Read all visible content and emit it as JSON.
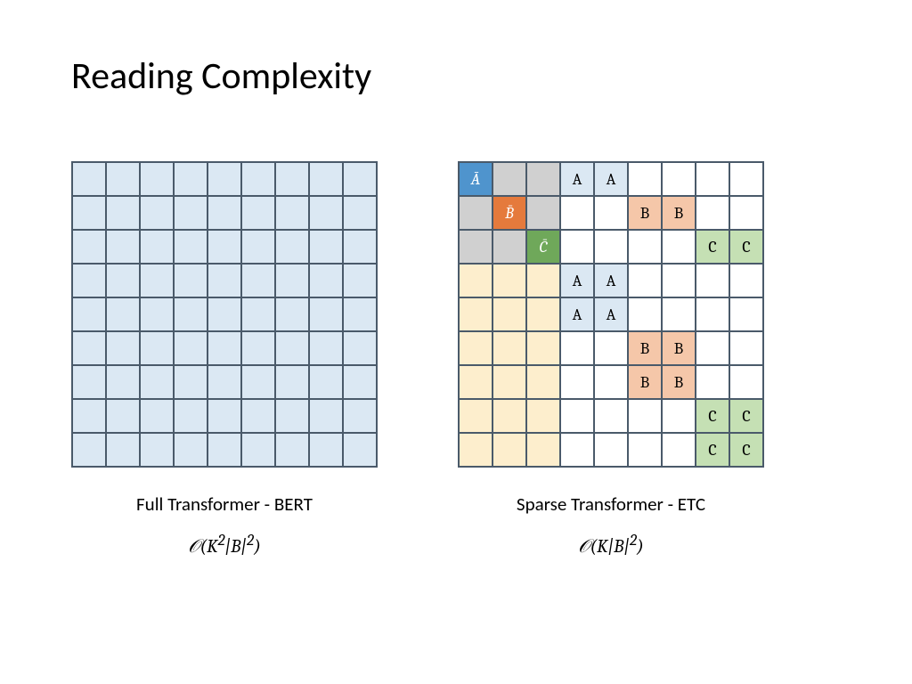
{
  "title": "Reading Complexity",
  "colors": {
    "fill_light_blue": "#dbe8f3",
    "fill_blue_header": "#4f94cd",
    "fill_orange_header": "#e57a3c",
    "fill_green_header": "#6fa85a",
    "fill_gray": "#d0d0d0",
    "fill_cream": "#fdeecd",
    "fill_peach": "#f5c7a9",
    "fill_light_green": "#c5e0b4",
    "fill_white": "#ffffff",
    "text_white": "#ffffff",
    "text_black": "#000000",
    "border": "#4a5a6a"
  },
  "left_grid": {
    "rows": 9,
    "cols": 9,
    "fill_all": "fill_light_blue"
  },
  "right_grid": {
    "rows": 9,
    "cols": 9,
    "cells": [
      {
        "r": 0,
        "c": 0,
        "fill": "fill_blue_header",
        "label": "Ā",
        "text": "text_white",
        "italic": true
      },
      {
        "r": 0,
        "c": 1,
        "fill": "fill_gray"
      },
      {
        "r": 0,
        "c": 2,
        "fill": "fill_gray"
      },
      {
        "r": 0,
        "c": 3,
        "fill": "fill_light_blue",
        "label": "A"
      },
      {
        "r": 0,
        "c": 4,
        "fill": "fill_light_blue",
        "label": "A"
      },
      {
        "r": 1,
        "c": 0,
        "fill": "fill_gray"
      },
      {
        "r": 1,
        "c": 1,
        "fill": "fill_orange_header",
        "label": "B̄",
        "text": "text_white",
        "italic": true
      },
      {
        "r": 1,
        "c": 2,
        "fill": "fill_gray"
      },
      {
        "r": 1,
        "c": 5,
        "fill": "fill_peach",
        "label": "B"
      },
      {
        "r": 1,
        "c": 6,
        "fill": "fill_peach",
        "label": "B"
      },
      {
        "r": 2,
        "c": 0,
        "fill": "fill_gray"
      },
      {
        "r": 2,
        "c": 1,
        "fill": "fill_gray"
      },
      {
        "r": 2,
        "c": 2,
        "fill": "fill_green_header",
        "label": "C̄",
        "text": "text_white",
        "italic": true
      },
      {
        "r": 2,
        "c": 7,
        "fill": "fill_light_green",
        "label": "C"
      },
      {
        "r": 2,
        "c": 8,
        "fill": "fill_light_green",
        "label": "C"
      },
      {
        "r": 3,
        "c": 0,
        "fill": "fill_cream"
      },
      {
        "r": 3,
        "c": 1,
        "fill": "fill_cream"
      },
      {
        "r": 3,
        "c": 2,
        "fill": "fill_cream"
      },
      {
        "r": 3,
        "c": 3,
        "fill": "fill_light_blue",
        "label": "A"
      },
      {
        "r": 3,
        "c": 4,
        "fill": "fill_light_blue",
        "label": "A"
      },
      {
        "r": 4,
        "c": 0,
        "fill": "fill_cream"
      },
      {
        "r": 4,
        "c": 1,
        "fill": "fill_cream"
      },
      {
        "r": 4,
        "c": 2,
        "fill": "fill_cream"
      },
      {
        "r": 4,
        "c": 3,
        "fill": "fill_light_blue",
        "label": "A"
      },
      {
        "r": 4,
        "c": 4,
        "fill": "fill_light_blue",
        "label": "A"
      },
      {
        "r": 5,
        "c": 0,
        "fill": "fill_cream"
      },
      {
        "r": 5,
        "c": 1,
        "fill": "fill_cream"
      },
      {
        "r": 5,
        "c": 2,
        "fill": "fill_cream"
      },
      {
        "r": 5,
        "c": 5,
        "fill": "fill_peach",
        "label": "B"
      },
      {
        "r": 5,
        "c": 6,
        "fill": "fill_peach",
        "label": "B"
      },
      {
        "r": 6,
        "c": 0,
        "fill": "fill_cream"
      },
      {
        "r": 6,
        "c": 1,
        "fill": "fill_cream"
      },
      {
        "r": 6,
        "c": 2,
        "fill": "fill_cream"
      },
      {
        "r": 6,
        "c": 5,
        "fill": "fill_peach",
        "label": "B"
      },
      {
        "r": 6,
        "c": 6,
        "fill": "fill_peach",
        "label": "B"
      },
      {
        "r": 7,
        "c": 0,
        "fill": "fill_cream"
      },
      {
        "r": 7,
        "c": 1,
        "fill": "fill_cream"
      },
      {
        "r": 7,
        "c": 2,
        "fill": "fill_cream"
      },
      {
        "r": 7,
        "c": 7,
        "fill": "fill_light_green",
        "label": "C"
      },
      {
        "r": 7,
        "c": 8,
        "fill": "fill_light_green",
        "label": "C"
      },
      {
        "r": 8,
        "c": 0,
        "fill": "fill_cream"
      },
      {
        "r": 8,
        "c": 1,
        "fill": "fill_cream"
      },
      {
        "r": 8,
        "c": 2,
        "fill": "fill_cream"
      },
      {
        "r": 8,
        "c": 7,
        "fill": "fill_light_green",
        "label": "C"
      },
      {
        "r": 8,
        "c": 8,
        "fill": "fill_light_green",
        "label": "C"
      }
    ]
  },
  "captions": {
    "left": "Full Transformer - BERT",
    "right": "Sparse Transformer - ETC"
  },
  "formulas": {
    "left_html": "<span class='scriptO'>𝒪</span>(<i>K</i><sup>2</sup>|<i>B</i>|<sup>2</sup>)",
    "right_html": "<span class='scriptO'>𝒪</span>(<i>K</i>|<i>B</i>|<sup>2</sup>)"
  }
}
